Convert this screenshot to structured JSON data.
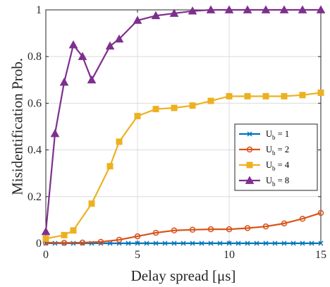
{
  "chart_data": {
    "type": "line",
    "xlabel": "Delay spread [μs]",
    "ylabel": "Misidentification Prob.",
    "xlim": [
      0,
      15
    ],
    "ylim": [
      0,
      1
    ],
    "xticks": [
      0,
      5,
      10,
      15
    ],
    "yticks": [
      0,
      0.2,
      0.4,
      0.6,
      0.8,
      1
    ],
    "xtick_labels": [
      "0",
      "5",
      "10",
      "15"
    ],
    "ytick_labels": [
      "0",
      "0.2",
      "0.4",
      "0.6",
      "0.8",
      "1"
    ],
    "grid": true,
    "legend_position": "right",
    "series": [
      {
        "name": "U_b = 1",
        "legend_base": "U",
        "legend_sub": "b",
        "legend_rest": " = 1",
        "color": "#0072BD",
        "marker": "x",
        "x": [
          0,
          0.5,
          1,
          1.5,
          2,
          2.5,
          3,
          3.5,
          4,
          4.5,
          5,
          5.5,
          6,
          6.5,
          7,
          7.5,
          8,
          8.5,
          9,
          9.5,
          10,
          10.5,
          11,
          11.5,
          12,
          12.5,
          13,
          13.5,
          14,
          14.5,
          15
        ],
        "y": [
          0,
          0,
          0,
          0,
          0,
          0,
          0,
          0,
          0,
          0,
          0,
          0,
          0,
          0,
          0,
          0,
          0,
          0,
          0,
          0,
          0,
          0,
          0,
          0,
          0,
          0,
          0,
          0,
          0,
          0,
          0
        ]
      },
      {
        "name": "U_b = 2",
        "legend_base": "U",
        "legend_sub": "b",
        "legend_rest": " = 2",
        "color": "#D95319",
        "marker": "o",
        "x": [
          0,
          1,
          2,
          3,
          4,
          5,
          6,
          7,
          8,
          9,
          10,
          11,
          12,
          13,
          14,
          15
        ],
        "y": [
          0.003,
          0.002,
          0.003,
          0.006,
          0.015,
          0.03,
          0.045,
          0.055,
          0.058,
          0.06,
          0.06,
          0.065,
          0.072,
          0.085,
          0.105,
          0.13
        ]
      },
      {
        "name": "U_b = 4",
        "legend_base": "U",
        "legend_sub": "b",
        "legend_rest": " = 4",
        "color": "#EDB120",
        "marker": "s",
        "x": [
          0,
          1,
          1.5,
          2.5,
          3.5,
          4,
          5,
          6,
          7,
          8,
          9,
          10,
          11,
          12,
          13,
          14,
          15
        ],
        "y": [
          0.02,
          0.035,
          0.055,
          0.17,
          0.33,
          0.435,
          0.545,
          0.575,
          0.58,
          0.59,
          0.61,
          0.63,
          0.63,
          0.63,
          0.63,
          0.635,
          0.645
        ]
      },
      {
        "name": "U_b = 8",
        "legend_base": "U",
        "legend_sub": "b",
        "legend_rest": " = 8",
        "color": "#7E2F8E",
        "marker": "^",
        "x": [
          0,
          0.5,
          1,
          1.5,
          2,
          2.5,
          3.5,
          4,
          5,
          6,
          7,
          8,
          9,
          10,
          11,
          12,
          13,
          14,
          15
        ],
        "y": [
          0.05,
          0.47,
          0.69,
          0.85,
          0.8,
          0.7,
          0.845,
          0.875,
          0.955,
          0.975,
          0.985,
          0.995,
          1,
          1,
          1,
          1,
          1,
          1,
          1
        ]
      }
    ]
  }
}
